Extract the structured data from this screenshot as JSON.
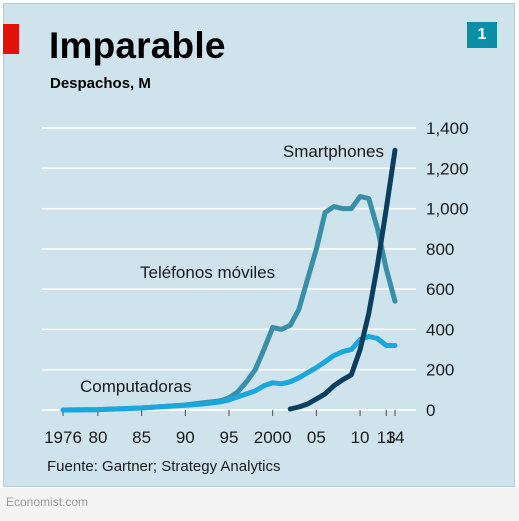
{
  "brand_text": "Economist.com",
  "chart_data": {
    "type": "line",
    "title": "Imparable",
    "subtitle": "Despachos, M",
    "badge": "1",
    "source": "Fuente: Gartner; Strategy Analytics",
    "ylim": [
      0,
      1400
    ],
    "yticks": [
      0,
      200,
      400,
      600,
      800,
      1000,
      1200,
      1400
    ],
    "ytick_labels": [
      "0",
      "200",
      "400",
      "600",
      "800",
      "1,000",
      "1,200",
      "1,400"
    ],
    "xlim": [
      1976,
      2014
    ],
    "xticks": [
      1976,
      1980,
      1985,
      1990,
      1995,
      2000,
      2005,
      2010,
      2013,
      2014
    ],
    "xtick_labels": [
      "1976",
      "80",
      "85",
      "90",
      "95",
      "2000",
      "05",
      "10",
      "13",
      "14"
    ],
    "grid": true,
    "series": [
      {
        "name": "Teléfonos móviles",
        "color": "#3a8fa8",
        "x": [
          1976,
          1980,
          1985,
          1990,
          1992,
          1994,
          1995,
          1996,
          1997,
          1998,
          1999,
          2000,
          2001,
          2002,
          2003,
          2004,
          2005,
          2006,
          2007,
          2008,
          2009,
          2010,
          2011,
          2012,
          2013,
          2014
        ],
        "y": [
          0,
          2,
          10,
          25,
          35,
          45,
          60,
          90,
          140,
          200,
          300,
          410,
          400,
          420,
          500,
          650,
          800,
          980,
          1010,
          1000,
          1000,
          1060,
          1050,
          900,
          700,
          540
        ]
      },
      {
        "name": "Computadoras",
        "color": "#1aa7dd",
        "x": [
          1976,
          1980,
          1985,
          1990,
          1992,
          1994,
          1995,
          1996,
          1997,
          1998,
          1999,
          2000,
          2001,
          2002,
          2003,
          2004,
          2005,
          2006,
          2007,
          2008,
          2009,
          2010,
          2011,
          2012,
          2013,
          2014
        ],
        "y": [
          0,
          2,
          10,
          24,
          30,
          40,
          50,
          65,
          80,
          95,
          120,
          135,
          130,
          140,
          160,
          185,
          210,
          240,
          270,
          290,
          300,
          350,
          365,
          355,
          320,
          320
        ]
      },
      {
        "name": "Smartphones",
        "color": "#0c3f5f",
        "x": [
          2002,
          2003,
          2004,
          2005,
          2006,
          2007,
          2008,
          2009,
          2010,
          2011,
          2012,
          2013,
          2014
        ],
        "y": [
          5,
          15,
          30,
          55,
          80,
          120,
          150,
          175,
          300,
          480,
          720,
          1000,
          1290
        ]
      }
    ]
  }
}
